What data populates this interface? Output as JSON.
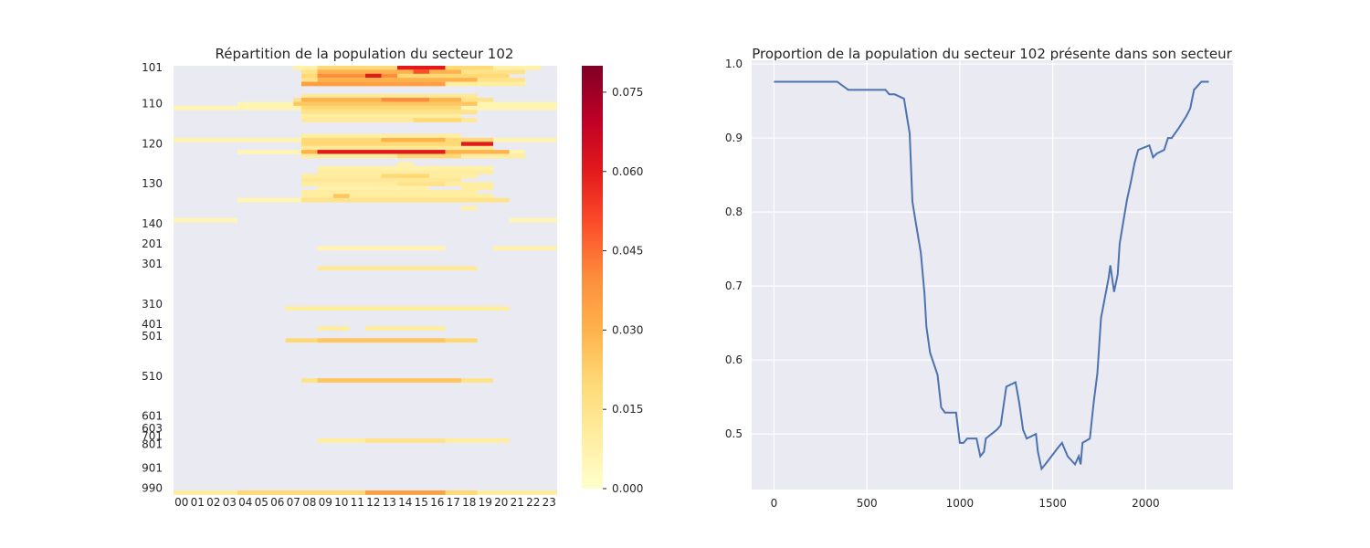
{
  "chart_data": [
    {
      "type": "heatmap",
      "title": "Répartition de la population du secteur 102",
      "colormap": "YlOrRd",
      "background_color": "#eaeaf2",
      "x_ticks": [
        "00",
        "01",
        "02",
        "03",
        "04",
        "05",
        "06",
        "07",
        "08",
        "09",
        "10",
        "11",
        "12",
        "13",
        "14",
        "15",
        "16",
        "17",
        "18",
        "19",
        "20",
        "21",
        "22",
        "23"
      ],
      "y_ticks": [
        "101",
        "110",
        "120",
        "130",
        "140",
        "201",
        "301",
        "310",
        "401",
        "501",
        "510",
        "601",
        "603",
        "701",
        "801",
        "901",
        "990"
      ],
      "colorbar": {
        "min": 0.0,
        "max": 0.08,
        "ticks": [
          "0.000",
          "0.015",
          "0.030",
          "0.045",
          "0.060",
          "0.075"
        ]
      },
      "note_values": "estimated values in [0,0.08]; rows listed top to bottom",
      "bands": [
        {
          "row": 101,
          "segments": [
            [
              7.5,
              23,
              0.008
            ],
            [
              9,
              20,
              0.02
            ],
            [
              14,
              17,
              0.06
            ]
          ]
        },
        {
          "row": 102,
          "segments": [
            [
              8,
              22,
              0.015
            ],
            [
              9,
              18,
              0.03
            ],
            [
              15,
              16,
              0.05
            ]
          ]
        },
        {
          "row": 103,
          "segments": [
            [
              8,
              21,
              0.02
            ],
            [
              9,
              14,
              0.04
            ],
            [
              12,
              13,
              0.06
            ]
          ]
        },
        {
          "row": 104,
          "segments": [
            [
              8,
              22,
              0.015
            ],
            [
              9,
              19,
              0.03
            ]
          ]
        },
        {
          "row": 105,
          "segments": [
            [
              8,
              22,
              0.01
            ],
            [
              8,
              17,
              0.035
            ]
          ]
        },
        {
          "row": 108,
          "segments": [
            [
              8,
              19,
              0.012
            ]
          ]
        },
        {
          "row": 109,
          "segments": [
            [
              7.5,
              20,
              0.015
            ],
            [
              8,
              18,
              0.03
            ],
            [
              13,
              16,
              0.04
            ]
          ]
        },
        {
          "row": 110,
          "segments": [
            [
              4,
              24,
              0.006
            ],
            [
              7.5,
              19,
              0.025
            ]
          ]
        },
        {
          "row": 111,
          "segments": [
            [
              0,
              24,
              0.006
            ],
            [
              8,
              18,
              0.02
            ]
          ]
        },
        {
          "row": 112,
          "segments": [
            [
              8,
              19,
              0.015
            ]
          ]
        },
        {
          "row": 113,
          "segments": [
            [
              8,
              18,
              0.01
            ]
          ]
        },
        {
          "row": 114,
          "segments": [
            [
              8,
              19,
              0.012
            ],
            [
              15,
              18,
              0.02
            ]
          ]
        },
        {
          "row": 118,
          "segments": [
            [
              8,
              18,
              0.01
            ]
          ]
        },
        {
          "row": 119,
          "segments": [
            [
              0,
              24,
              0.007
            ],
            [
              8,
              20,
              0.02
            ],
            [
              13,
              17,
              0.03
            ]
          ]
        },
        {
          "row": 120,
          "segments": [
            [
              8,
              20,
              0.02
            ],
            [
              18,
              20,
              0.06
            ]
          ]
        },
        {
          "row": 121,
          "segments": [
            [
              8,
              20,
              0.012
            ]
          ]
        },
        {
          "row": 122,
          "segments": [
            [
              4,
              22,
              0.006
            ],
            [
              8,
              21,
              0.03
            ],
            [
              9,
              17,
              0.06
            ]
          ]
        },
        {
          "row": 123,
          "segments": [
            [
              8,
              22,
              0.01
            ],
            [
              14,
              18,
              0.02
            ]
          ]
        },
        {
          "row": 125,
          "segments": [
            [
              14,
              15,
              0.008
            ]
          ]
        },
        {
          "row": 126,
          "segments": [
            [
              9,
              20,
              0.008
            ]
          ]
        },
        {
          "row": 127,
          "segments": [
            [
              9,
              20,
              0.01
            ]
          ]
        },
        {
          "row": 128,
          "segments": [
            [
              8,
              19,
              0.01
            ],
            [
              13,
              16,
              0.02
            ]
          ]
        },
        {
          "row": 129,
          "segments": [
            [
              8,
              18,
              0.012
            ]
          ]
        },
        {
          "row": 130,
          "segments": [
            [
              8,
              20,
              0.01
            ],
            [
              14,
              17,
              0.015
            ]
          ]
        },
        {
          "row": 131,
          "segments": [
            [
              9,
              16,
              0.008
            ],
            [
              18,
              20,
              0.01
            ]
          ]
        },
        {
          "row": 132,
          "segments": [
            [
              8,
              19,
              0.01
            ]
          ]
        },
        {
          "row": 133,
          "segments": [
            [
              8,
              20,
              0.01
            ],
            [
              10,
              11,
              0.025
            ]
          ]
        },
        {
          "row": 134,
          "segments": [
            [
              4,
              8,
              0.006
            ],
            [
              8,
              21,
              0.015
            ]
          ]
        },
        {
          "row": 136,
          "segments": [
            [
              18,
              19,
              0.008
            ]
          ]
        },
        {
          "row": 139,
          "segments": [
            [
              0,
              4,
              0.005
            ],
            [
              21,
              24,
              0.005
            ]
          ]
        }
      ]
    },
    {
      "type": "line",
      "title": "Proportion de la population du secteur 102 présente dans son secteur",
      "xlim": [
        -120,
        2470
      ],
      "ylim": [
        0.425,
        1.005
      ],
      "x_ticks": [
        0,
        500,
        1000,
        1500,
        2000
      ],
      "y_ticks": [
        0.5,
        0.6,
        0.7,
        0.8,
        0.9,
        1.0
      ],
      "x_tick_labels": [
        "0",
        "500",
        "1000",
        "1500",
        "2000"
      ],
      "y_tick_labels": [
        "0.5",
        "0.6",
        "0.7",
        "0.8",
        "0.9",
        "1.0"
      ],
      "line_color": "#4c72b0",
      "background_color": "#eaeaf2",
      "points": [
        [
          0,
          0.976
        ],
        [
          100,
          0.976
        ],
        [
          200,
          0.976
        ],
        [
          340,
          0.976
        ],
        [
          400,
          0.965
        ],
        [
          500,
          0.965
        ],
        [
          600,
          0.965
        ],
        [
          620,
          0.959
        ],
        [
          650,
          0.959
        ],
        [
          700,
          0.953
        ],
        [
          730,
          0.906
        ],
        [
          745,
          0.814
        ],
        [
          760,
          0.79
        ],
        [
          790,
          0.745
        ],
        [
          810,
          0.69
        ],
        [
          820,
          0.645
        ],
        [
          840,
          0.61
        ],
        [
          880,
          0.58
        ],
        [
          900,
          0.536
        ],
        [
          920,
          0.529
        ],
        [
          980,
          0.529
        ],
        [
          1000,
          0.488
        ],
        [
          1020,
          0.488
        ],
        [
          1040,
          0.494
        ],
        [
          1090,
          0.494
        ],
        [
          1110,
          0.47
        ],
        [
          1130,
          0.476
        ],
        [
          1140,
          0.494
        ],
        [
          1200,
          0.506
        ],
        [
          1220,
          0.512
        ],
        [
          1250,
          0.564
        ],
        [
          1300,
          0.57
        ],
        [
          1320,
          0.542
        ],
        [
          1340,
          0.506
        ],
        [
          1360,
          0.494
        ],
        [
          1410,
          0.5
        ],
        [
          1420,
          0.476
        ],
        [
          1440,
          0.453
        ],
        [
          1460,
          0.459
        ],
        [
          1530,
          0.482
        ],
        [
          1550,
          0.488
        ],
        [
          1580,
          0.47
        ],
        [
          1620,
          0.459
        ],
        [
          1640,
          0.47
        ],
        [
          1650,
          0.459
        ],
        [
          1660,
          0.488
        ],
        [
          1700,
          0.494
        ],
        [
          1720,
          0.542
        ],
        [
          1740,
          0.582
        ],
        [
          1760,
          0.657
        ],
        [
          1800,
          0.71
        ],
        [
          1810,
          0.728
        ],
        [
          1830,
          0.692
        ],
        [
          1850,
          0.716
        ],
        [
          1860,
          0.757
        ],
        [
          1880,
          0.787
        ],
        [
          1900,
          0.817
        ],
        [
          1920,
          0.84
        ],
        [
          1940,
          0.866
        ],
        [
          1960,
          0.884
        ],
        [
          2020,
          0.89
        ],
        [
          2040,
          0.874
        ],
        [
          2060,
          0.879
        ],
        [
          2100,
          0.884
        ],
        [
          2120,
          0.9
        ],
        [
          2140,
          0.9
        ],
        [
          2180,
          0.914
        ],
        [
          2220,
          0.93
        ],
        [
          2240,
          0.94
        ],
        [
          2260,
          0.965
        ],
        [
          2300,
          0.976
        ],
        [
          2340,
          0.976
        ]
      ]
    }
  ]
}
